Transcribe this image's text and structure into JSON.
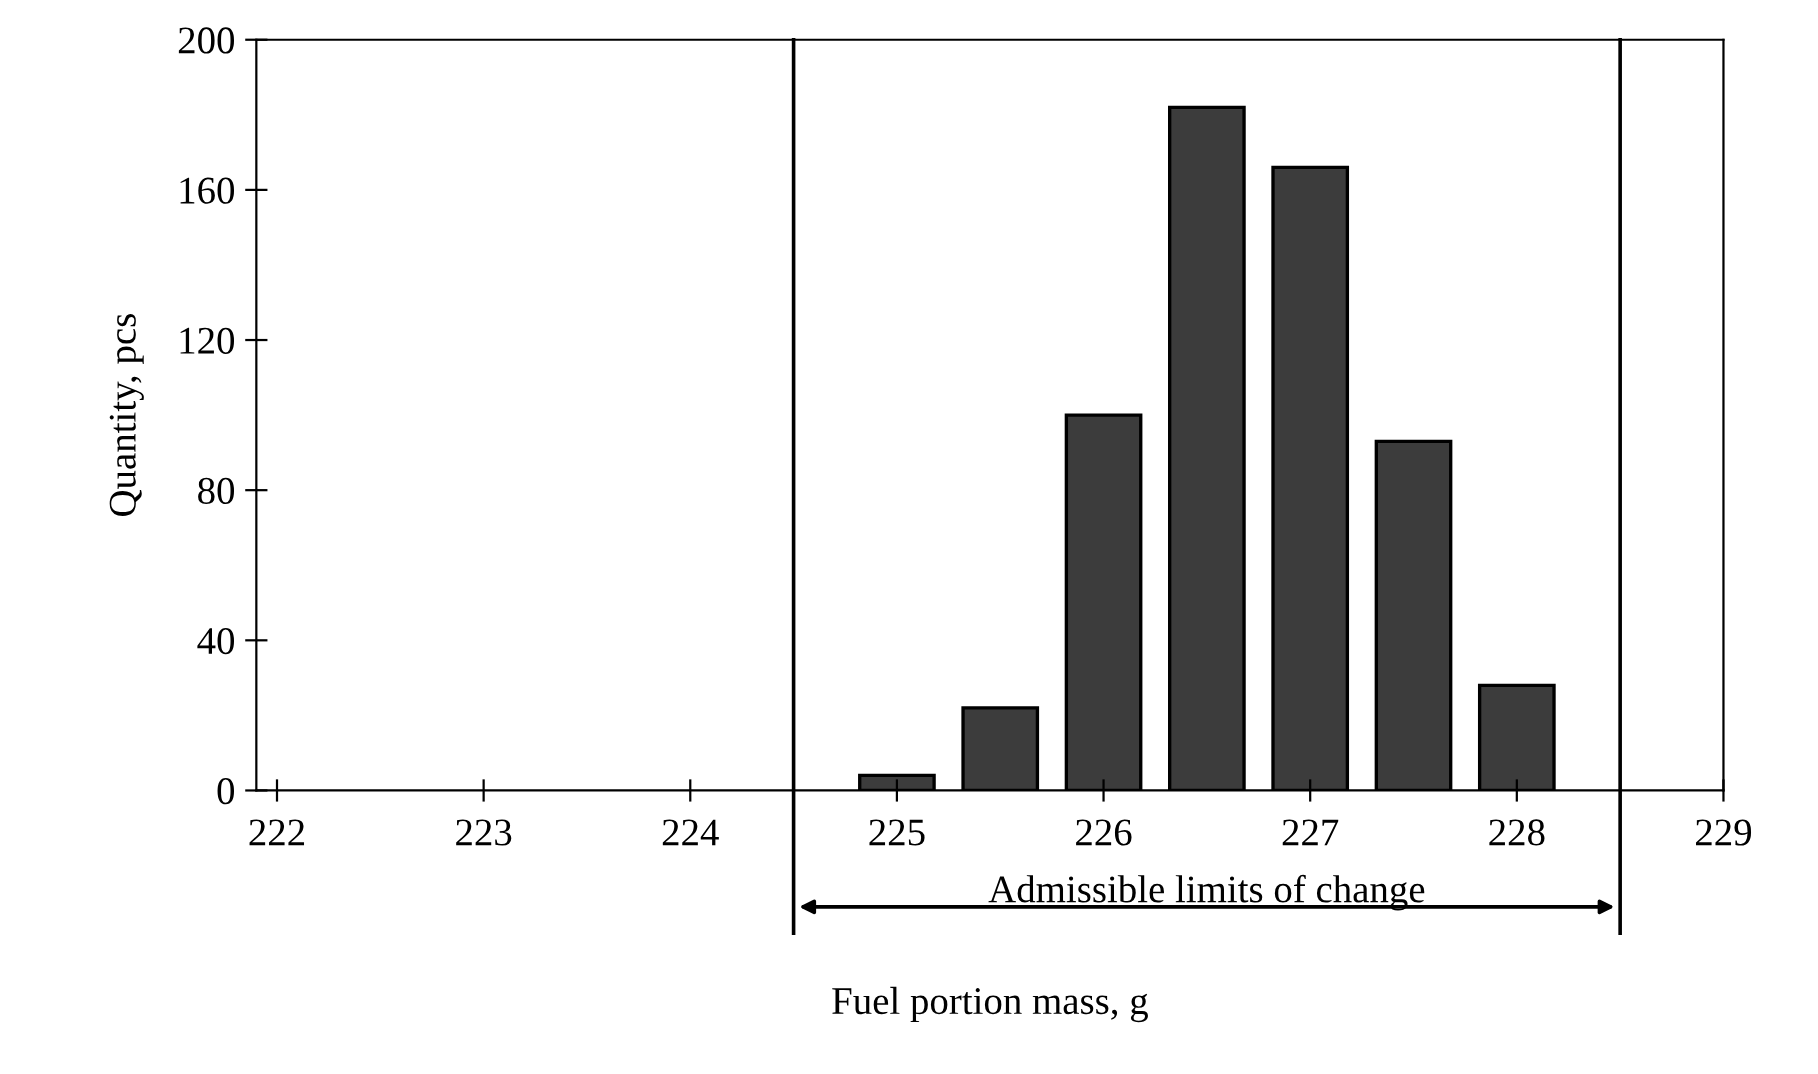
{
  "chart_data": {
    "type": "bar",
    "xlabel": "Fuel portion mass, g",
    "ylabel": "Quantity, pcs",
    "x": [
      225,
      225.5,
      226,
      226.5,
      227,
      227.5,
      228
    ],
    "values": [
      4,
      22,
      100,
      182,
      166,
      93,
      28
    ],
    "color": "#3c3c3c",
    "xlim": [
      221.9,
      229
    ],
    "xticks": [
      222,
      223,
      224,
      225,
      226,
      227,
      228,
      229
    ],
    "ylim": [
      0,
      200
    ],
    "yticks": [
      0,
      40,
      80,
      120,
      160,
      200
    ],
    "grid": false,
    "legend": false,
    "ref_lines": [
      {
        "axis": "x",
        "value": 224.5,
        "color": "#000000"
      },
      {
        "axis": "x",
        "value": 228.5,
        "color": "#000000"
      }
    ],
    "annotations": [
      "Admissible limits of change"
    ]
  }
}
